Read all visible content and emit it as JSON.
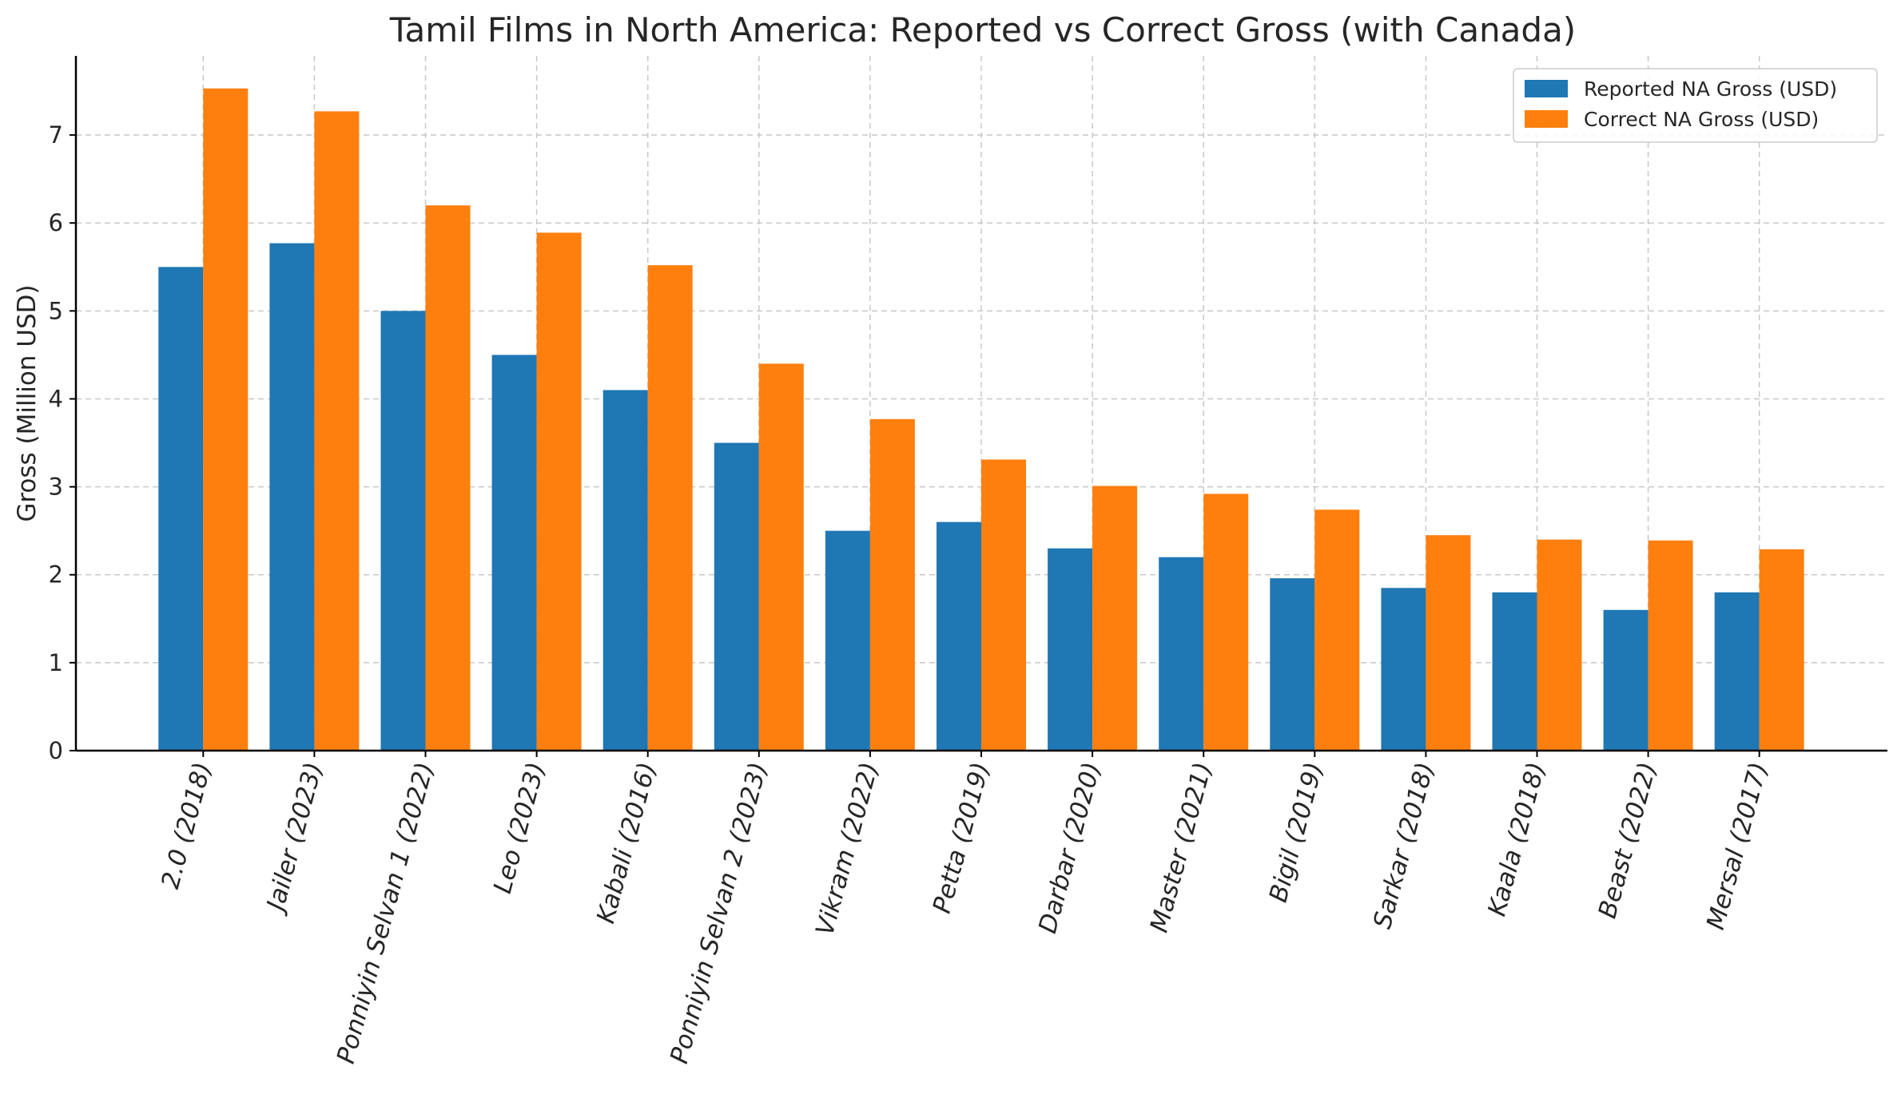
{
  "chart_data": {
    "type": "bar",
    "title": "Tamil Films in North America: Reported vs Correct Gross (with Canada)",
    "xlabel": "",
    "ylabel": "Gross (Million USD)",
    "ylim": [
      0,
      7.9
    ],
    "yticks": [
      0,
      1,
      2,
      3,
      4,
      5,
      6,
      7
    ],
    "grid": true,
    "legend_position": "top-right",
    "categories": [
      "2.0 (2018)",
      "Jailer (2023)",
      "Ponniyin Selvan 1 (2022)",
      "Leo (2023)",
      "Kabali (2016)",
      "Ponniyin Selvan 2 (2023)",
      "Vikram (2022)",
      "Petta (2019)",
      "Darbar (2020)",
      "Master (2021)",
      "Bigil (2019)",
      "Sarkar (2018)",
      "Kaala (2018)",
      "Beast (2022)",
      "Mersal (2017)"
    ],
    "series": [
      {
        "name": "Reported NA Gross (USD)",
        "color": "#1f77b4",
        "values": [
          5.5,
          5.77,
          5.0,
          4.5,
          4.1,
          3.5,
          2.5,
          2.6,
          2.3,
          2.2,
          1.96,
          1.85,
          1.8,
          1.6,
          1.8
        ]
      },
      {
        "name": "Correct NA Gross (USD)",
        "color": "#ff7f0e",
        "values": [
          7.53,
          7.27,
          6.2,
          5.89,
          5.52,
          4.4,
          3.77,
          3.31,
          3.01,
          2.92,
          2.74,
          2.45,
          2.4,
          2.39,
          2.29
        ]
      }
    ]
  }
}
